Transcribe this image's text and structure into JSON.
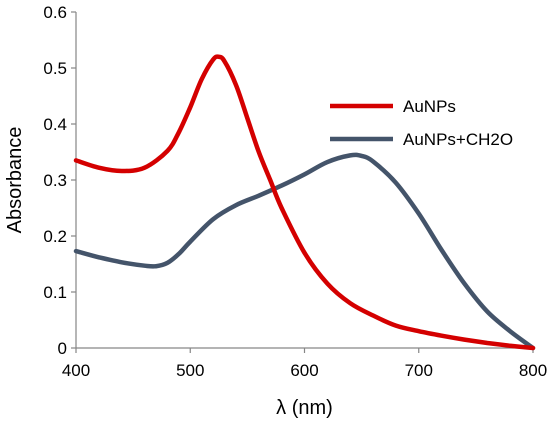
{
  "chart_data": {
    "type": "line",
    "title": "",
    "xlabel": "λ (nm)",
    "ylabel": "Absorbance",
    "xlim": [
      400,
      800
    ],
    "ylim": [
      0,
      0.6
    ],
    "x_ticks": [
      400,
      500,
      600,
      700,
      800
    ],
    "x_tick_labels": [
      "400",
      "500",
      "600",
      "700",
      "800"
    ],
    "y_ticks": [
      0,
      0.1,
      0.2,
      0.3,
      0.4,
      0.5,
      0.6
    ],
    "y_tick_labels": [
      "0",
      "0.1",
      "0.2",
      "0.3",
      "0.4",
      "0.5",
      "0.6"
    ],
    "grid": false,
    "legend_position": "top-right",
    "series": [
      {
        "name": "AuNPs",
        "color": "#d40000",
        "x": [
          400,
          420,
          440,
          460,
          480,
          490,
          500,
          510,
          520,
          525,
          530,
          540,
          550,
          560,
          570,
          580,
          600,
          620,
          640,
          660,
          680,
          700,
          720,
          740,
          760,
          780,
          800
        ],
        "y": [
          0.335,
          0.322,
          0.316,
          0.322,
          0.352,
          0.385,
          0.43,
          0.48,
          0.515,
          0.52,
          0.512,
          0.47,
          0.41,
          0.35,
          0.3,
          0.25,
          0.17,
          0.115,
          0.08,
          0.058,
          0.04,
          0.03,
          0.022,
          0.015,
          0.009,
          0.004,
          0.0
        ]
      },
      {
        "name": "AuNPs+CH2O",
        "color": "#44546a",
        "x": [
          400,
          420,
          440,
          460,
          470,
          480,
          490,
          500,
          520,
          540,
          560,
          580,
          600,
          620,
          640,
          650,
          660,
          680,
          700,
          720,
          740,
          760,
          780,
          800
        ],
        "y": [
          0.173,
          0.162,
          0.153,
          0.147,
          0.146,
          0.152,
          0.168,
          0.19,
          0.23,
          0.255,
          0.272,
          0.29,
          0.31,
          0.332,
          0.344,
          0.343,
          0.333,
          0.295,
          0.24,
          0.175,
          0.115,
          0.065,
          0.03,
          0.0
        ]
      }
    ]
  }
}
